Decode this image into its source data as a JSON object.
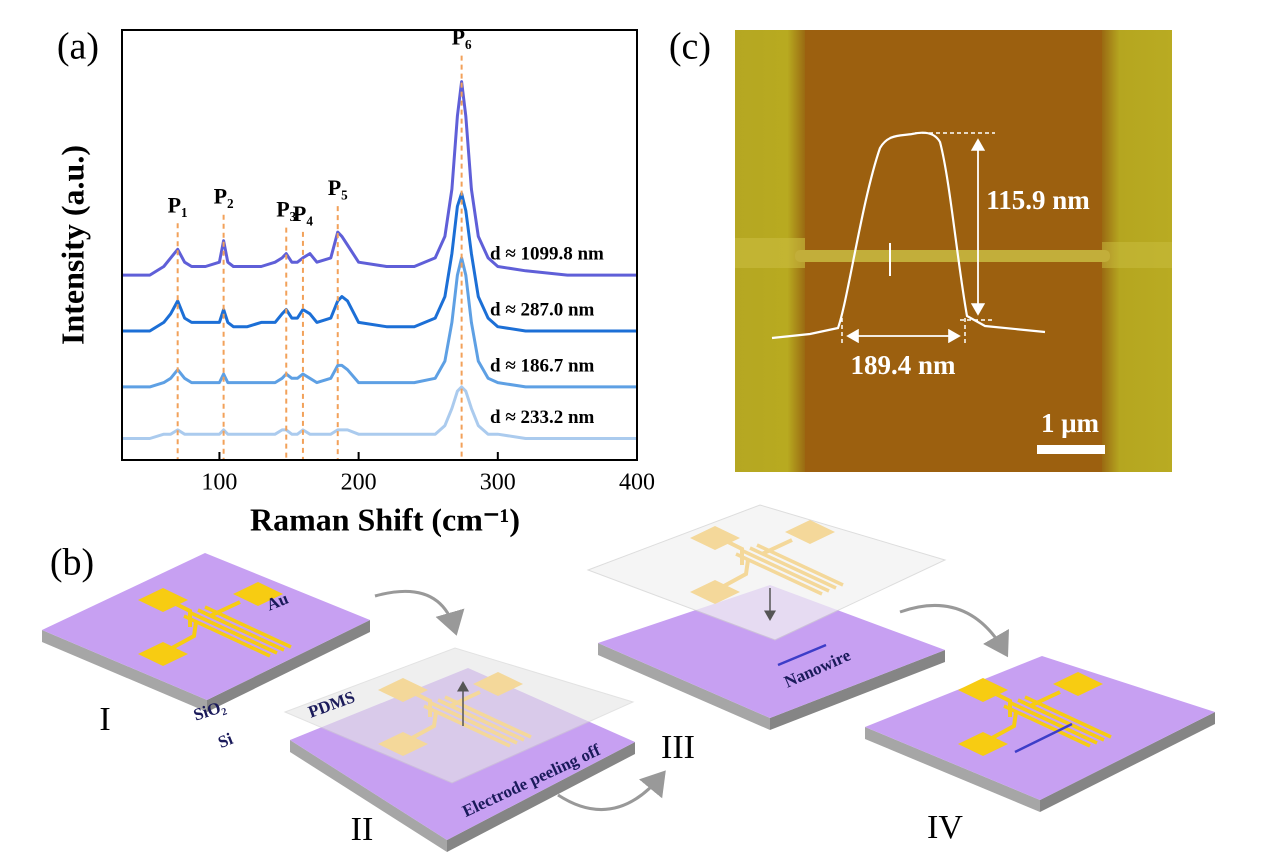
{
  "chart_data": {
    "type": "line",
    "y_label": "Intensity (a.u.)",
    "x_label": "Raman Shift (cm⁻¹)",
    "x": [
      30,
      50,
      60,
      65,
      70,
      75,
      80,
      90,
      100,
      103,
      106,
      110,
      120,
      130,
      140,
      145,
      148,
      152,
      156,
      160,
      165,
      170,
      180,
      185,
      188,
      192,
      200,
      220,
      240,
      255,
      262,
      267,
      271,
      274,
      277,
      281,
      286,
      293,
      300,
      320,
      350,
      380,
      400
    ],
    "xlim": [
      30,
      400
    ],
    "xticks": [
      100,
      200,
      300,
      400
    ],
    "ylim": [
      0,
      100
    ],
    "series": [
      {
        "name": "d ≈ 1099.8 nm",
        "color": "#5f5fd8",
        "values": [
          43,
          43,
          45,
          47,
          49,
          46,
          45,
          45,
          46,
          51,
          46,
          45,
          45,
          45,
          46,
          47,
          48,
          46,
          46,
          47,
          48,
          46,
          47,
          53,
          52,
          50,
          46,
          45,
          45,
          47,
          52,
          63,
          80,
          88,
          80,
          63,
          52,
          47,
          45,
          44,
          43,
          43,
          43
        ]
      },
      {
        "name": "d ≈ 287.0 nm",
        "color": "#1c6fd6",
        "values": [
          30,
          30,
          32,
          34,
          37,
          33,
          32,
          32,
          32,
          35,
          32,
          31,
          31,
          32,
          32,
          34,
          35,
          33,
          33,
          35,
          34,
          32,
          33,
          37,
          38,
          37,
          32,
          31,
          31,
          33,
          38,
          48,
          59,
          62,
          58,
          48,
          38,
          33,
          31,
          30,
          30,
          30,
          30
        ]
      },
      {
        "name": "d ≈ 186.7 nm",
        "color": "#5ea0e4",
        "values": [
          17,
          17,
          18,
          19,
          21,
          19,
          18,
          18,
          18,
          20,
          18,
          18,
          18,
          18,
          18,
          19,
          20,
          19,
          19,
          20,
          19,
          18,
          19,
          22,
          22,
          21,
          18,
          18,
          18,
          19,
          23,
          32,
          43,
          47,
          43,
          32,
          23,
          19,
          18,
          17,
          17,
          17,
          17
        ]
      },
      {
        "name": "d ≈ 233.2 nm",
        "color": "#abcbee",
        "values": [
          5,
          5,
          6,
          6,
          7,
          6,
          6,
          6,
          6,
          7,
          6,
          6,
          6,
          6,
          6,
          7,
          7,
          6,
          6,
          7,
          6,
          6,
          6,
          7,
          7,
          7,
          6,
          6,
          6,
          6,
          8,
          12,
          16,
          17,
          16,
          12,
          8,
          6,
          6,
          5,
          5,
          5,
          5
        ]
      }
    ],
    "annotations": [
      {
        "text": "P₁",
        "x": 70
      },
      {
        "text": "P₂",
        "x": 103
      },
      {
        "text": "P₃",
        "x": 148
      },
      {
        "text": "P₄",
        "x": 160
      },
      {
        "text": "P₅",
        "x": 185
      },
      {
        "text": "P₆",
        "x": 274
      }
    ],
    "annotation_color": "#f2a15a"
  },
  "panel_labels": [
    "(a)",
    "(b)",
    "(c)"
  ],
  "diagram": {
    "steps": [
      "I",
      "II",
      "III",
      "IV"
    ],
    "au": "Au",
    "sio2": "SiO₂",
    "si": "Si",
    "pdms": "PDMS",
    "peel": "Electrode peeling off",
    "nanowire": "Nanowire"
  },
  "afm_image": {
    "height": "115.9 nm",
    "width": "189.4 nm",
    "scale_bar": "1 μm"
  }
}
